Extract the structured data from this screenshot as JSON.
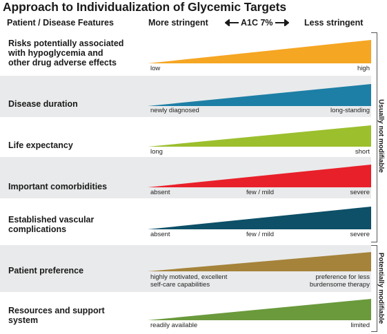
{
  "title": "Approach to Individualization of Glycemic Targets",
  "header": {
    "features": "Patient / Disease Features",
    "more": "More stringent",
    "a1c": "A1C 7%",
    "less": "Less stringent"
  },
  "groups": {
    "not_modifiable": "Usually not modifiable",
    "modifiable": "Potentially modifiable"
  },
  "rows": [
    {
      "label_lines": [
        "Risks potentially associated",
        "with hypoglycemia and",
        "other drug adverse effects"
      ],
      "left": "low",
      "mid": "",
      "right": "high",
      "color": "#f5a623"
    },
    {
      "label_lines": [
        "Disease duration"
      ],
      "left": "newly diagnosed",
      "mid": "",
      "right": "long-standing",
      "color": "#1d7fa6"
    },
    {
      "label_lines": [
        "Life expectancy"
      ],
      "left": "long",
      "mid": "",
      "right": "short",
      "color": "#9cbf2e"
    },
    {
      "label_lines": [
        "Important comorbidities"
      ],
      "left": "absent",
      "mid": "few / mild",
      "right": "severe",
      "color": "#e8202a"
    },
    {
      "label_lines": [
        "Established vascular",
        "complications"
      ],
      "left": "absent",
      "mid": "few / mild",
      "right": "severe",
      "color": "#0d5067"
    },
    {
      "label_lines": [
        "Patient preference"
      ],
      "left_lines": [
        "highly motivated, excellent",
        "self-care capabilities"
      ],
      "mid": "",
      "right_lines": [
        "preference for less",
        "burdensome therapy"
      ],
      "color": "#a5833a"
    },
    {
      "label_lines": [
        "Resources and support",
        "system"
      ],
      "left": "readily available",
      "mid": "",
      "right": "limited",
      "color": "#6a9a3c"
    }
  ]
}
